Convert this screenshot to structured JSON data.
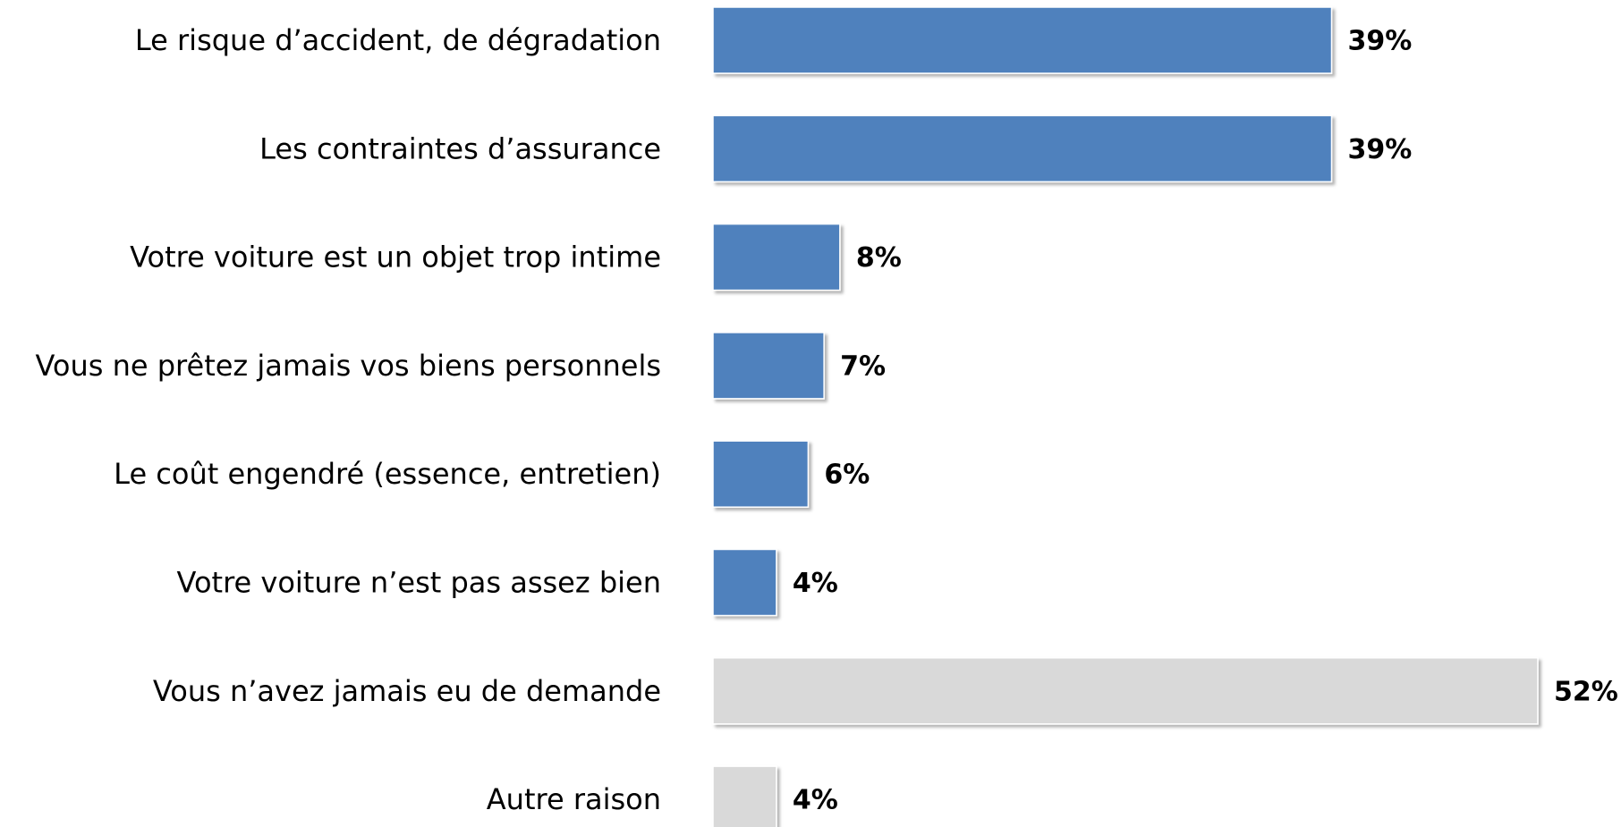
{
  "chart_data": {
    "type": "bar",
    "orientation": "horizontal",
    "categories": [
      "Le risque d’accident, de dégradation",
      "Les contraintes d’assurance",
      "Votre voiture est un objet trop intime",
      "Vous ne prêtez jamais vos biens personnels",
      "Le coût engendré (essence, entretien)",
      "Votre voiture n’est pas assez bien",
      "Vous n’avez jamais eu de demande",
      "Autre raison"
    ],
    "values": [
      39,
      39,
      8,
      7,
      6,
      4,
      52,
      4
    ],
    "value_labels": [
      "39%",
      "39%",
      "8%",
      "7%",
      "6%",
      "4%",
      "52%",
      "4%"
    ],
    "colors": [
      "#4f81bd",
      "#4f81bd",
      "#4f81bd",
      "#4f81bd",
      "#4f81bd",
      "#4f81bd",
      "#d9d9d9",
      "#d9d9d9"
    ]
  }
}
